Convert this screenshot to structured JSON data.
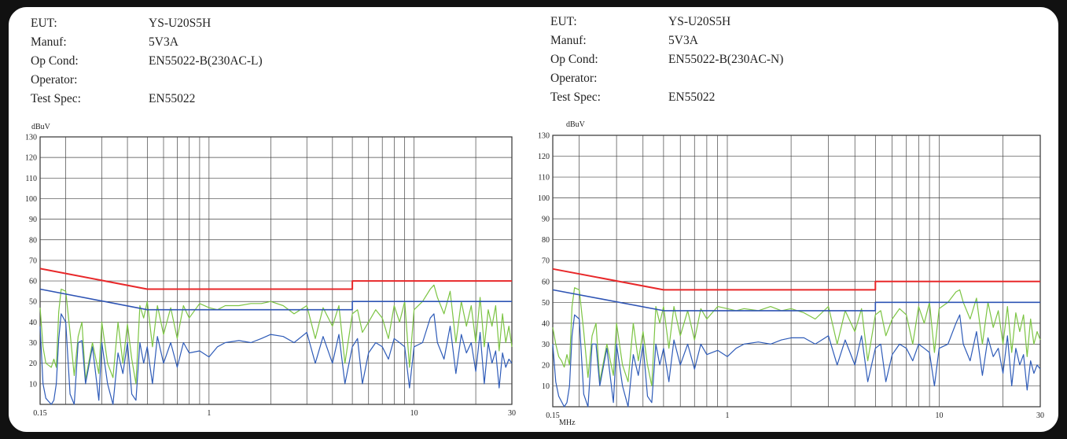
{
  "charts": [
    {
      "info": [
        {
          "label": "EUT:",
          "value": "YS-U20S5H"
        },
        {
          "label": "Manuf:",
          "value": "5V3A"
        },
        {
          "label": "Op Cond:",
          "value": "EN55022-B(230AC-L)"
        },
        {
          "label": "Operator:",
          "value": ""
        },
        {
          "label": "Test Spec:",
          "value": "EN55022"
        }
      ],
      "unit_label": "dBuV",
      "xunit_label": ""
    },
    {
      "info": [
        {
          "label": "EUT:",
          "value": "YS-U20S5H"
        },
        {
          "label": "Manuf:",
          "value": "5V3A"
        },
        {
          "label": "Op Cond:",
          "value": "EN55022-B(230AC-N)"
        },
        {
          "label": "Operator:",
          "value": ""
        },
        {
          "label": "Test Spec:",
          "value": "EN55022"
        }
      ],
      "unit_label": "dBuV",
      "xunit_label": "MHz"
    }
  ],
  "chart_data": [
    {
      "type": "line",
      "xscale": "log",
      "xlim": [
        0.15,
        30
      ],
      "ylim": [
        0,
        130
      ],
      "xticks": [
        0.15,
        1,
        10,
        30
      ],
      "xtick_labels": [
        "0.15",
        "1",
        "10",
        "30"
      ],
      "yticks": [
        10,
        20,
        30,
        40,
        50,
        60,
        70,
        80,
        90,
        100,
        110,
        120,
        130
      ],
      "ylabel": "dBuV",
      "grid": true,
      "colors": {
        "qp_limit": "#e8282a",
        "av_limit": "#2e54b4",
        "qp_trace": "#7cc443",
        "av_trace": "#2e5bb8"
      },
      "series": [
        {
          "key": "qp_limit",
          "x": [
            0.15,
            0.5,
            0.5,
            5,
            5,
            30
          ],
          "y": [
            66,
            56,
            56,
            56,
            60,
            60
          ]
        },
        {
          "key": "av_limit",
          "x": [
            0.15,
            0.5,
            0.5,
            5,
            5,
            30
          ],
          "y": [
            56,
            46,
            46,
            46,
            50,
            50
          ]
        },
        {
          "key": "qp_trace",
          "x": [
            0.15,
            0.155,
            0.16,
            0.165,
            0.17,
            0.175,
            0.18,
            0.185,
            0.19,
            0.2,
            0.21,
            0.22,
            0.23,
            0.24,
            0.25,
            0.27,
            0.29,
            0.3,
            0.32,
            0.34,
            0.36,
            0.38,
            0.4,
            0.42,
            0.44,
            0.46,
            0.48,
            0.5,
            0.53,
            0.56,
            0.6,
            0.65,
            0.7,
            0.75,
            0.8,
            0.9,
            1,
            1.1,
            1.2,
            1.4,
            1.6,
            1.8,
            2,
            2.3,
            2.6,
            3,
            3.3,
            3.6,
            4,
            4.3,
            4.6,
            5,
            5.3,
            5.6,
            6,
            6.5,
            7,
            7.5,
            8,
            8.5,
            9,
            9.5,
            10,
            11,
            12,
            12.5,
            13,
            14,
            15,
            16,
            17,
            18,
            19,
            20,
            21,
            22,
            23,
            24,
            25,
            26,
            27,
            28,
            29,
            30
          ],
          "y": [
            47,
            28,
            20,
            19,
            18,
            22,
            18,
            45,
            56,
            55,
            35,
            14,
            33,
            40,
            12,
            30,
            15,
            40,
            20,
            13,
            40,
            20,
            39,
            22,
            10,
            48,
            42,
            50,
            28,
            48,
            34,
            47,
            32,
            48,
            42,
            49,
            47,
            46,
            48,
            48,
            49,
            49,
            50,
            48,
            44,
            48,
            32,
            47,
            38,
            48,
            20,
            44,
            46,
            35,
            40,
            46,
            42,
            32,
            48,
            40,
            50,
            18,
            46,
            50,
            56,
            58,
            52,
            44,
            55,
            30,
            50,
            38,
            48,
            30,
            52,
            28,
            46,
            38,
            48,
            26,
            44,
            30,
            38,
            28
          ]
        },
        {
          "key": "av_trace",
          "x": [
            0.15,
            0.155,
            0.16,
            0.17,
            0.175,
            0.18,
            0.185,
            0.19,
            0.2,
            0.21,
            0.22,
            0.23,
            0.24,
            0.25,
            0.27,
            0.29,
            0.3,
            0.32,
            0.34,
            0.36,
            0.38,
            0.4,
            0.42,
            0.44,
            0.46,
            0.48,
            0.5,
            0.53,
            0.56,
            0.6,
            0.65,
            0.7,
            0.75,
            0.8,
            0.9,
            1,
            1.1,
            1.2,
            1.4,
            1.6,
            1.8,
            2,
            2.3,
            2.6,
            3,
            3.3,
            3.6,
            4,
            4.3,
            4.6,
            5,
            5.3,
            5.6,
            6,
            6.5,
            7,
            7.5,
            8,
            8.5,
            9,
            9.5,
            10,
            11,
            12,
            12.5,
            13,
            14,
            15,
            16,
            17,
            18,
            19,
            20,
            21,
            22,
            23,
            24,
            25,
            26,
            27,
            28,
            29,
            30
          ],
          "y": [
            38,
            10,
            3,
            0,
            2,
            10,
            32,
            44,
            40,
            5,
            0,
            30,
            31,
            10,
            28,
            2,
            30,
            10,
            0,
            25,
            15,
            30,
            5,
            2,
            30,
            20,
            28,
            10,
            33,
            20,
            30,
            18,
            30,
            25,
            26,
            23,
            28,
            30,
            31,
            30,
            32,
            34,
            33,
            30,
            35,
            20,
            33,
            20,
            34,
            10,
            28,
            32,
            10,
            25,
            30,
            28,
            22,
            32,
            30,
            28,
            8,
            28,
            30,
            42,
            44,
            30,
            22,
            38,
            15,
            34,
            25,
            30,
            16,
            35,
            10,
            30,
            20,
            26,
            8,
            25,
            18,
            22,
            20
          ]
        }
      ]
    },
    {
      "type": "line",
      "xscale": "log",
      "xlim": [
        0.15,
        30
      ],
      "ylim": [
        0,
        130
      ],
      "xticks": [
        0.15,
        1,
        10,
        30
      ],
      "xtick_labels": [
        "0.15",
        "1",
        "10",
        "30"
      ],
      "yticks": [
        10,
        20,
        30,
        40,
        50,
        60,
        70,
        80,
        90,
        100,
        110,
        120,
        130
      ],
      "ylabel": "dBuV",
      "xlabel": "MHz",
      "grid": true,
      "colors": {
        "qp_limit": "#e8282a",
        "av_limit": "#2e54b4",
        "qp_trace": "#7cc443",
        "av_trace": "#2e5bb8"
      },
      "series": [
        {
          "key": "qp_limit",
          "x": [
            0.15,
            0.5,
            0.5,
            5,
            5,
            30
          ],
          "y": [
            66,
            56,
            56,
            56,
            60,
            60
          ]
        },
        {
          "key": "av_limit",
          "x": [
            0.15,
            0.5,
            0.5,
            5,
            5,
            30
          ],
          "y": [
            56,
            46,
            46,
            46,
            50,
            50
          ]
        },
        {
          "key": "qp_trace",
          "x": [
            0.15,
            0.155,
            0.16,
            0.165,
            0.17,
            0.175,
            0.18,
            0.185,
            0.19,
            0.2,
            0.21,
            0.22,
            0.23,
            0.24,
            0.25,
            0.27,
            0.29,
            0.3,
            0.32,
            0.34,
            0.36,
            0.38,
            0.4,
            0.42,
            0.44,
            0.46,
            0.48,
            0.5,
            0.53,
            0.56,
            0.6,
            0.65,
            0.7,
            0.75,
            0.8,
            0.9,
            1,
            1.1,
            1.2,
            1.4,
            1.6,
            1.8,
            2,
            2.3,
            2.6,
            3,
            3.3,
            3.6,
            4,
            4.3,
            4.6,
            5,
            5.3,
            5.6,
            6,
            6.5,
            7,
            7.5,
            8,
            8.5,
            9,
            9.5,
            10,
            11,
            12,
            12.5,
            13,
            14,
            15,
            16,
            17,
            18,
            19,
            20,
            21,
            22,
            23,
            24,
            25,
            26,
            27,
            28,
            29,
            30
          ],
          "y": [
            38,
            30,
            24,
            22,
            19,
            25,
            20,
            48,
            57,
            56,
            36,
            14,
            34,
            40,
            12,
            30,
            15,
            40,
            20,
            12,
            40,
            22,
            36,
            20,
            10,
            48,
            40,
            48,
            28,
            48,
            34,
            46,
            32,
            47,
            42,
            48,
            47,
            46,
            47,
            46,
            48,
            46,
            47,
            45,
            42,
            48,
            30,
            46,
            36,
            47,
            22,
            44,
            46,
            34,
            42,
            47,
            44,
            30,
            48,
            40,
            50,
            26,
            47,
            50,
            55,
            56,
            50,
            42,
            52,
            30,
            50,
            38,
            46,
            30,
            48,
            26,
            45,
            36,
            44,
            24,
            42,
            30,
            36,
            32
          ]
        },
        {
          "key": "av_trace",
          "x": [
            0.15,
            0.155,
            0.16,
            0.17,
            0.175,
            0.18,
            0.185,
            0.19,
            0.2,
            0.21,
            0.22,
            0.23,
            0.24,
            0.25,
            0.27,
            0.29,
            0.3,
            0.32,
            0.34,
            0.36,
            0.38,
            0.4,
            0.42,
            0.44,
            0.46,
            0.48,
            0.5,
            0.53,
            0.56,
            0.6,
            0.65,
            0.7,
            0.75,
            0.8,
            0.9,
            1,
            1.1,
            1.2,
            1.4,
            1.6,
            1.8,
            2,
            2.3,
            2.6,
            3,
            3.3,
            3.6,
            4,
            4.3,
            4.6,
            5,
            5.3,
            5.6,
            6,
            6.5,
            7,
            7.5,
            8,
            8.5,
            9,
            9.5,
            10,
            11,
            12,
            12.5,
            13,
            14,
            15,
            16,
            17,
            18,
            19,
            20,
            21,
            22,
            23,
            24,
            25,
            26,
            27,
            28,
            29,
            30
          ],
          "y": [
            30,
            12,
            5,
            0,
            2,
            10,
            34,
            44,
            42,
            6,
            0,
            30,
            30,
            10,
            28,
            2,
            30,
            10,
            0,
            25,
            15,
            30,
            5,
            2,
            30,
            20,
            28,
            12,
            32,
            20,
            30,
            18,
            30,
            25,
            27,
            24,
            28,
            30,
            31,
            30,
            32,
            33,
            33,
            30,
            34,
            20,
            32,
            20,
            34,
            12,
            28,
            30,
            12,
            25,
            30,
            28,
            22,
            30,
            28,
            26,
            10,
            28,
            30,
            40,
            44,
            30,
            22,
            36,
            15,
            33,
            24,
            28,
            16,
            34,
            10,
            28,
            20,
            25,
            8,
            22,
            16,
            20,
            18
          ]
        }
      ]
    }
  ]
}
